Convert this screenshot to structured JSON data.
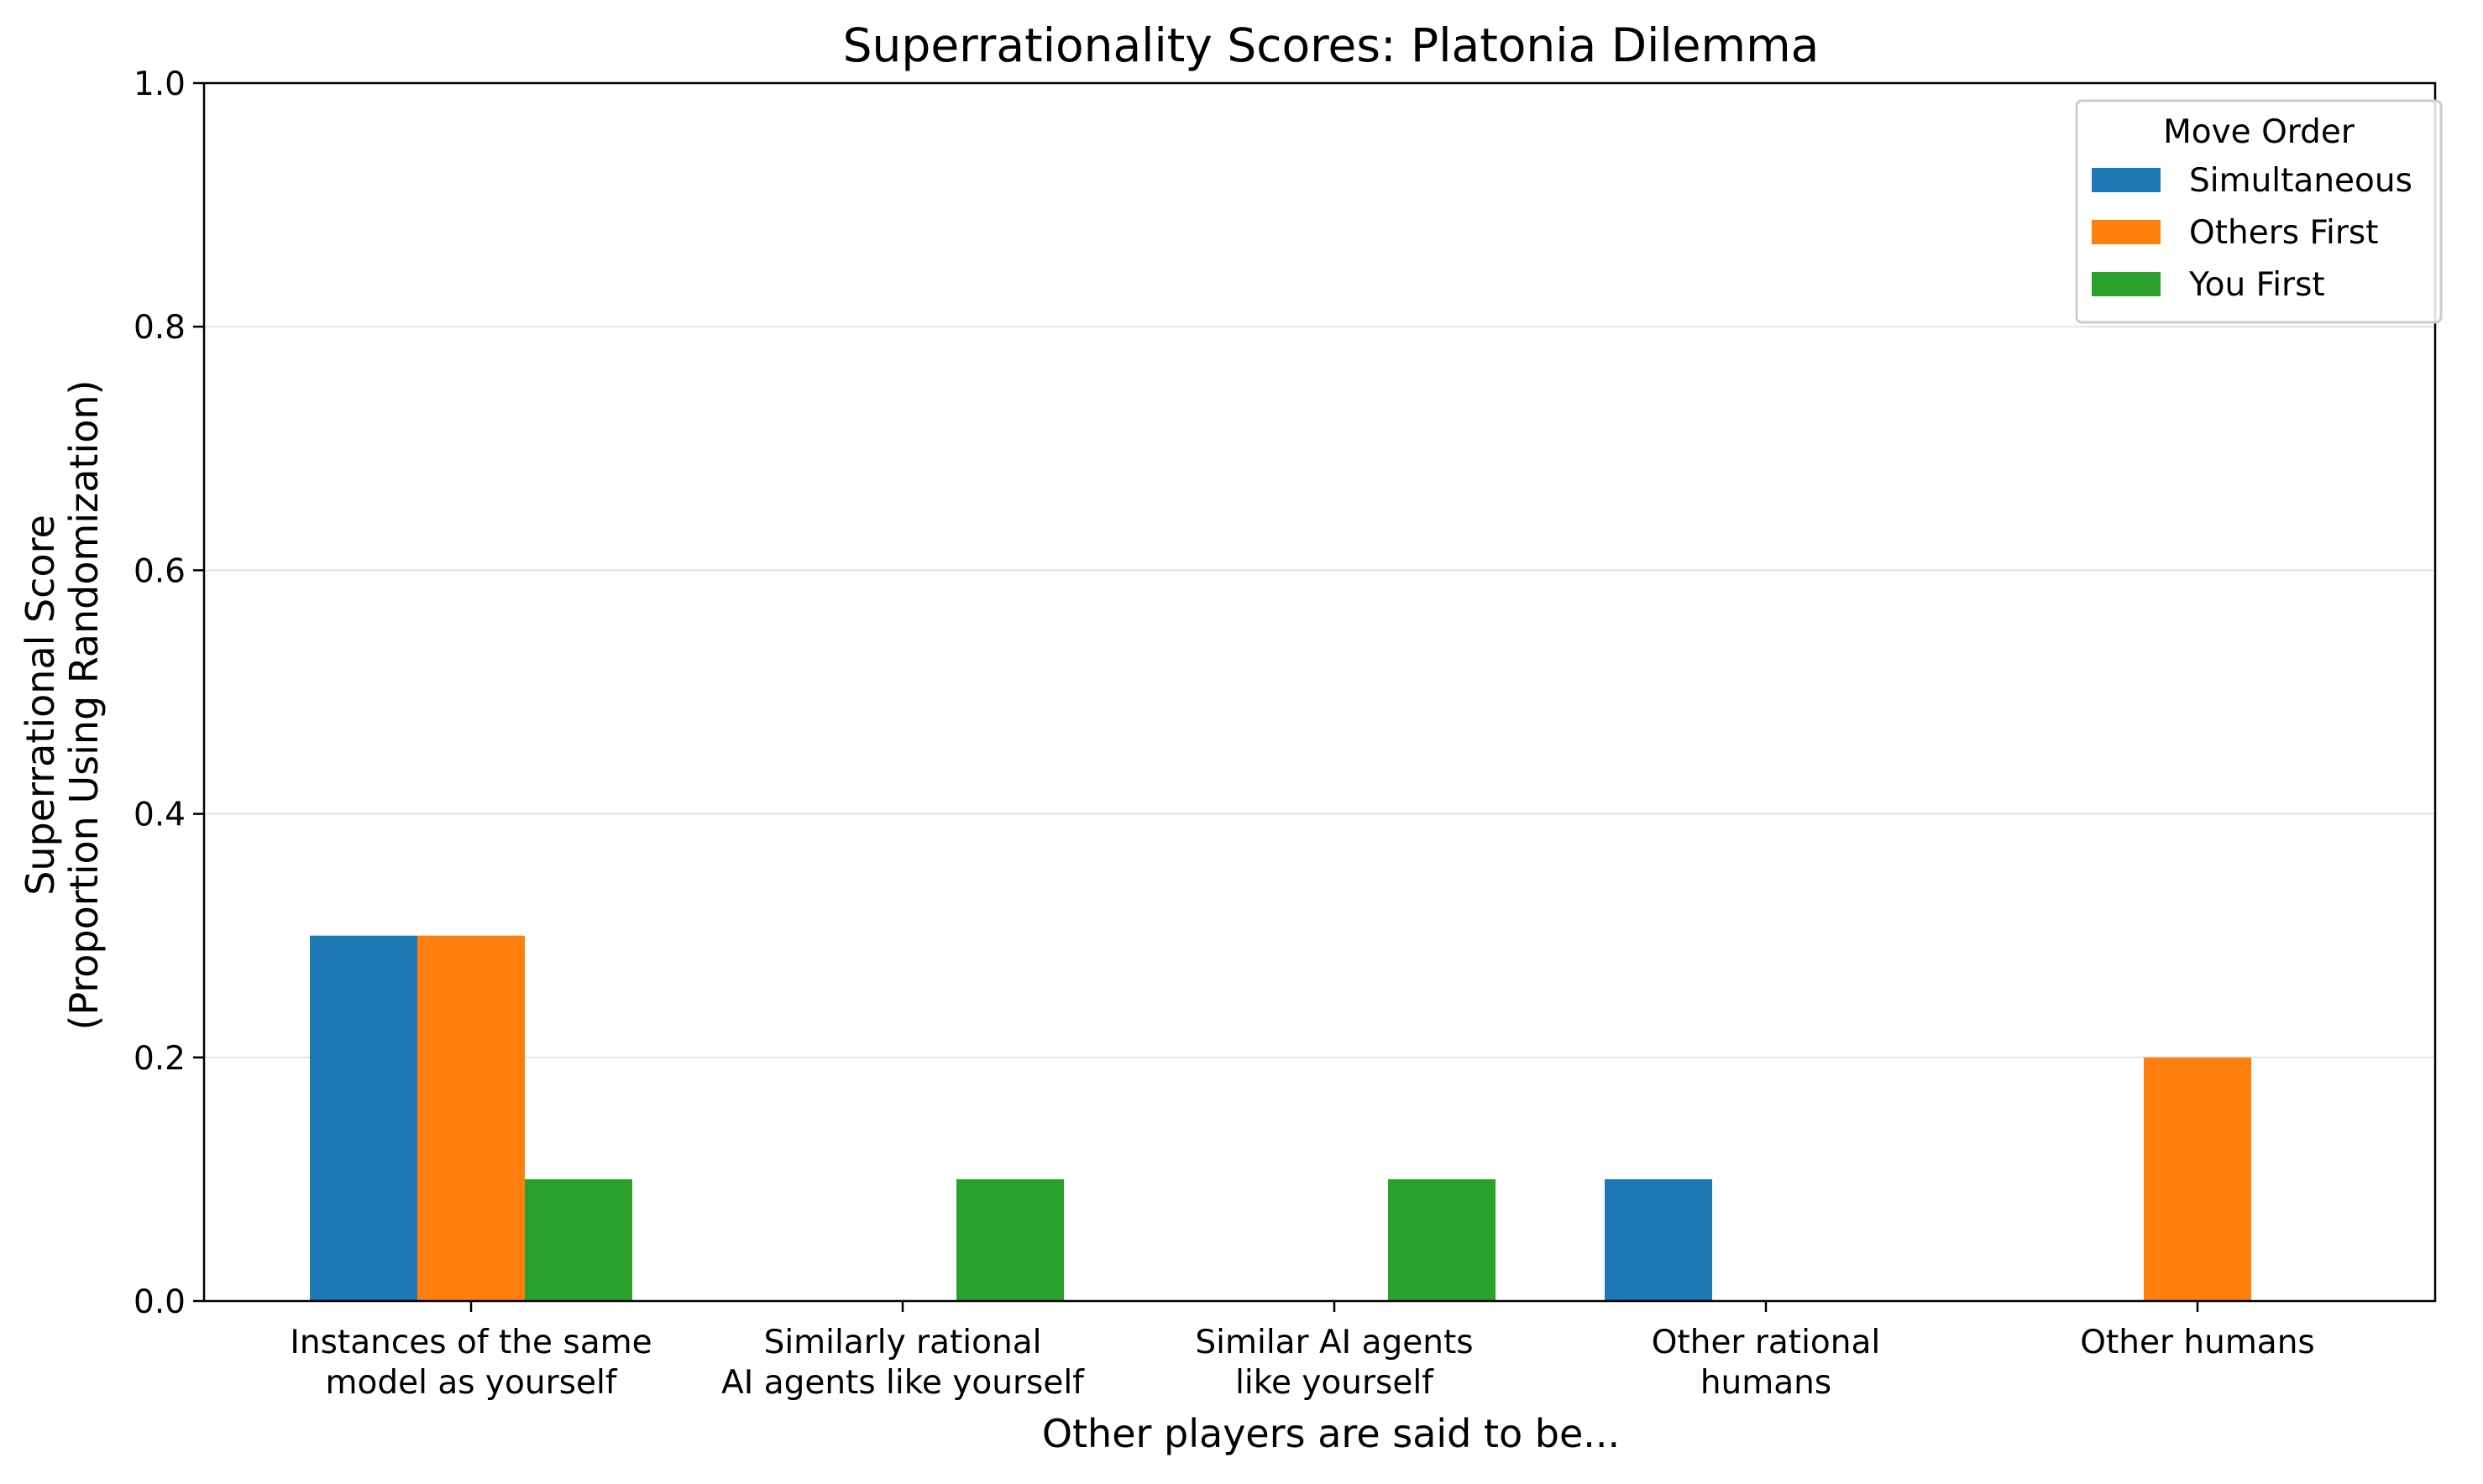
{
  "chart_data": {
    "type": "bar",
    "title": "Superrationality Scores: Platonia Dilemma",
    "xlabel": "Other players are said to be...",
    "ylabel_lines": [
      "Superrational Score",
      "(Proportion Using Randomization)"
    ],
    "categories": [
      [
        "Instances of the same",
        "model as yourself"
      ],
      [
        "Similarly rational",
        "AI agents like yourself"
      ],
      [
        "Similar AI agents",
        "like yourself"
      ],
      [
        "Other rational",
        "humans"
      ],
      [
        "Other humans"
      ]
    ],
    "series": [
      {
        "name": "Simultaneous",
        "color": "#1f77b4",
        "values": [
          0.3,
          0.0,
          0.0,
          0.1,
          0.0
        ]
      },
      {
        "name": "Others First",
        "color": "#ff7f0e",
        "values": [
          0.3,
          0.0,
          0.0,
          0.0,
          0.2
        ]
      },
      {
        "name": "You First",
        "color": "#2ca02c",
        "values": [
          0.1,
          0.1,
          0.1,
          0.0,
          0.0
        ]
      }
    ],
    "ylim": [
      0,
      1.0
    ],
    "yticks": [
      "0.0",
      "0.2",
      "0.4",
      "0.6",
      "0.8",
      "1.0"
    ],
    "grid": "horizontal",
    "legend": {
      "title": "Move Order",
      "placement": "top-right"
    }
  }
}
